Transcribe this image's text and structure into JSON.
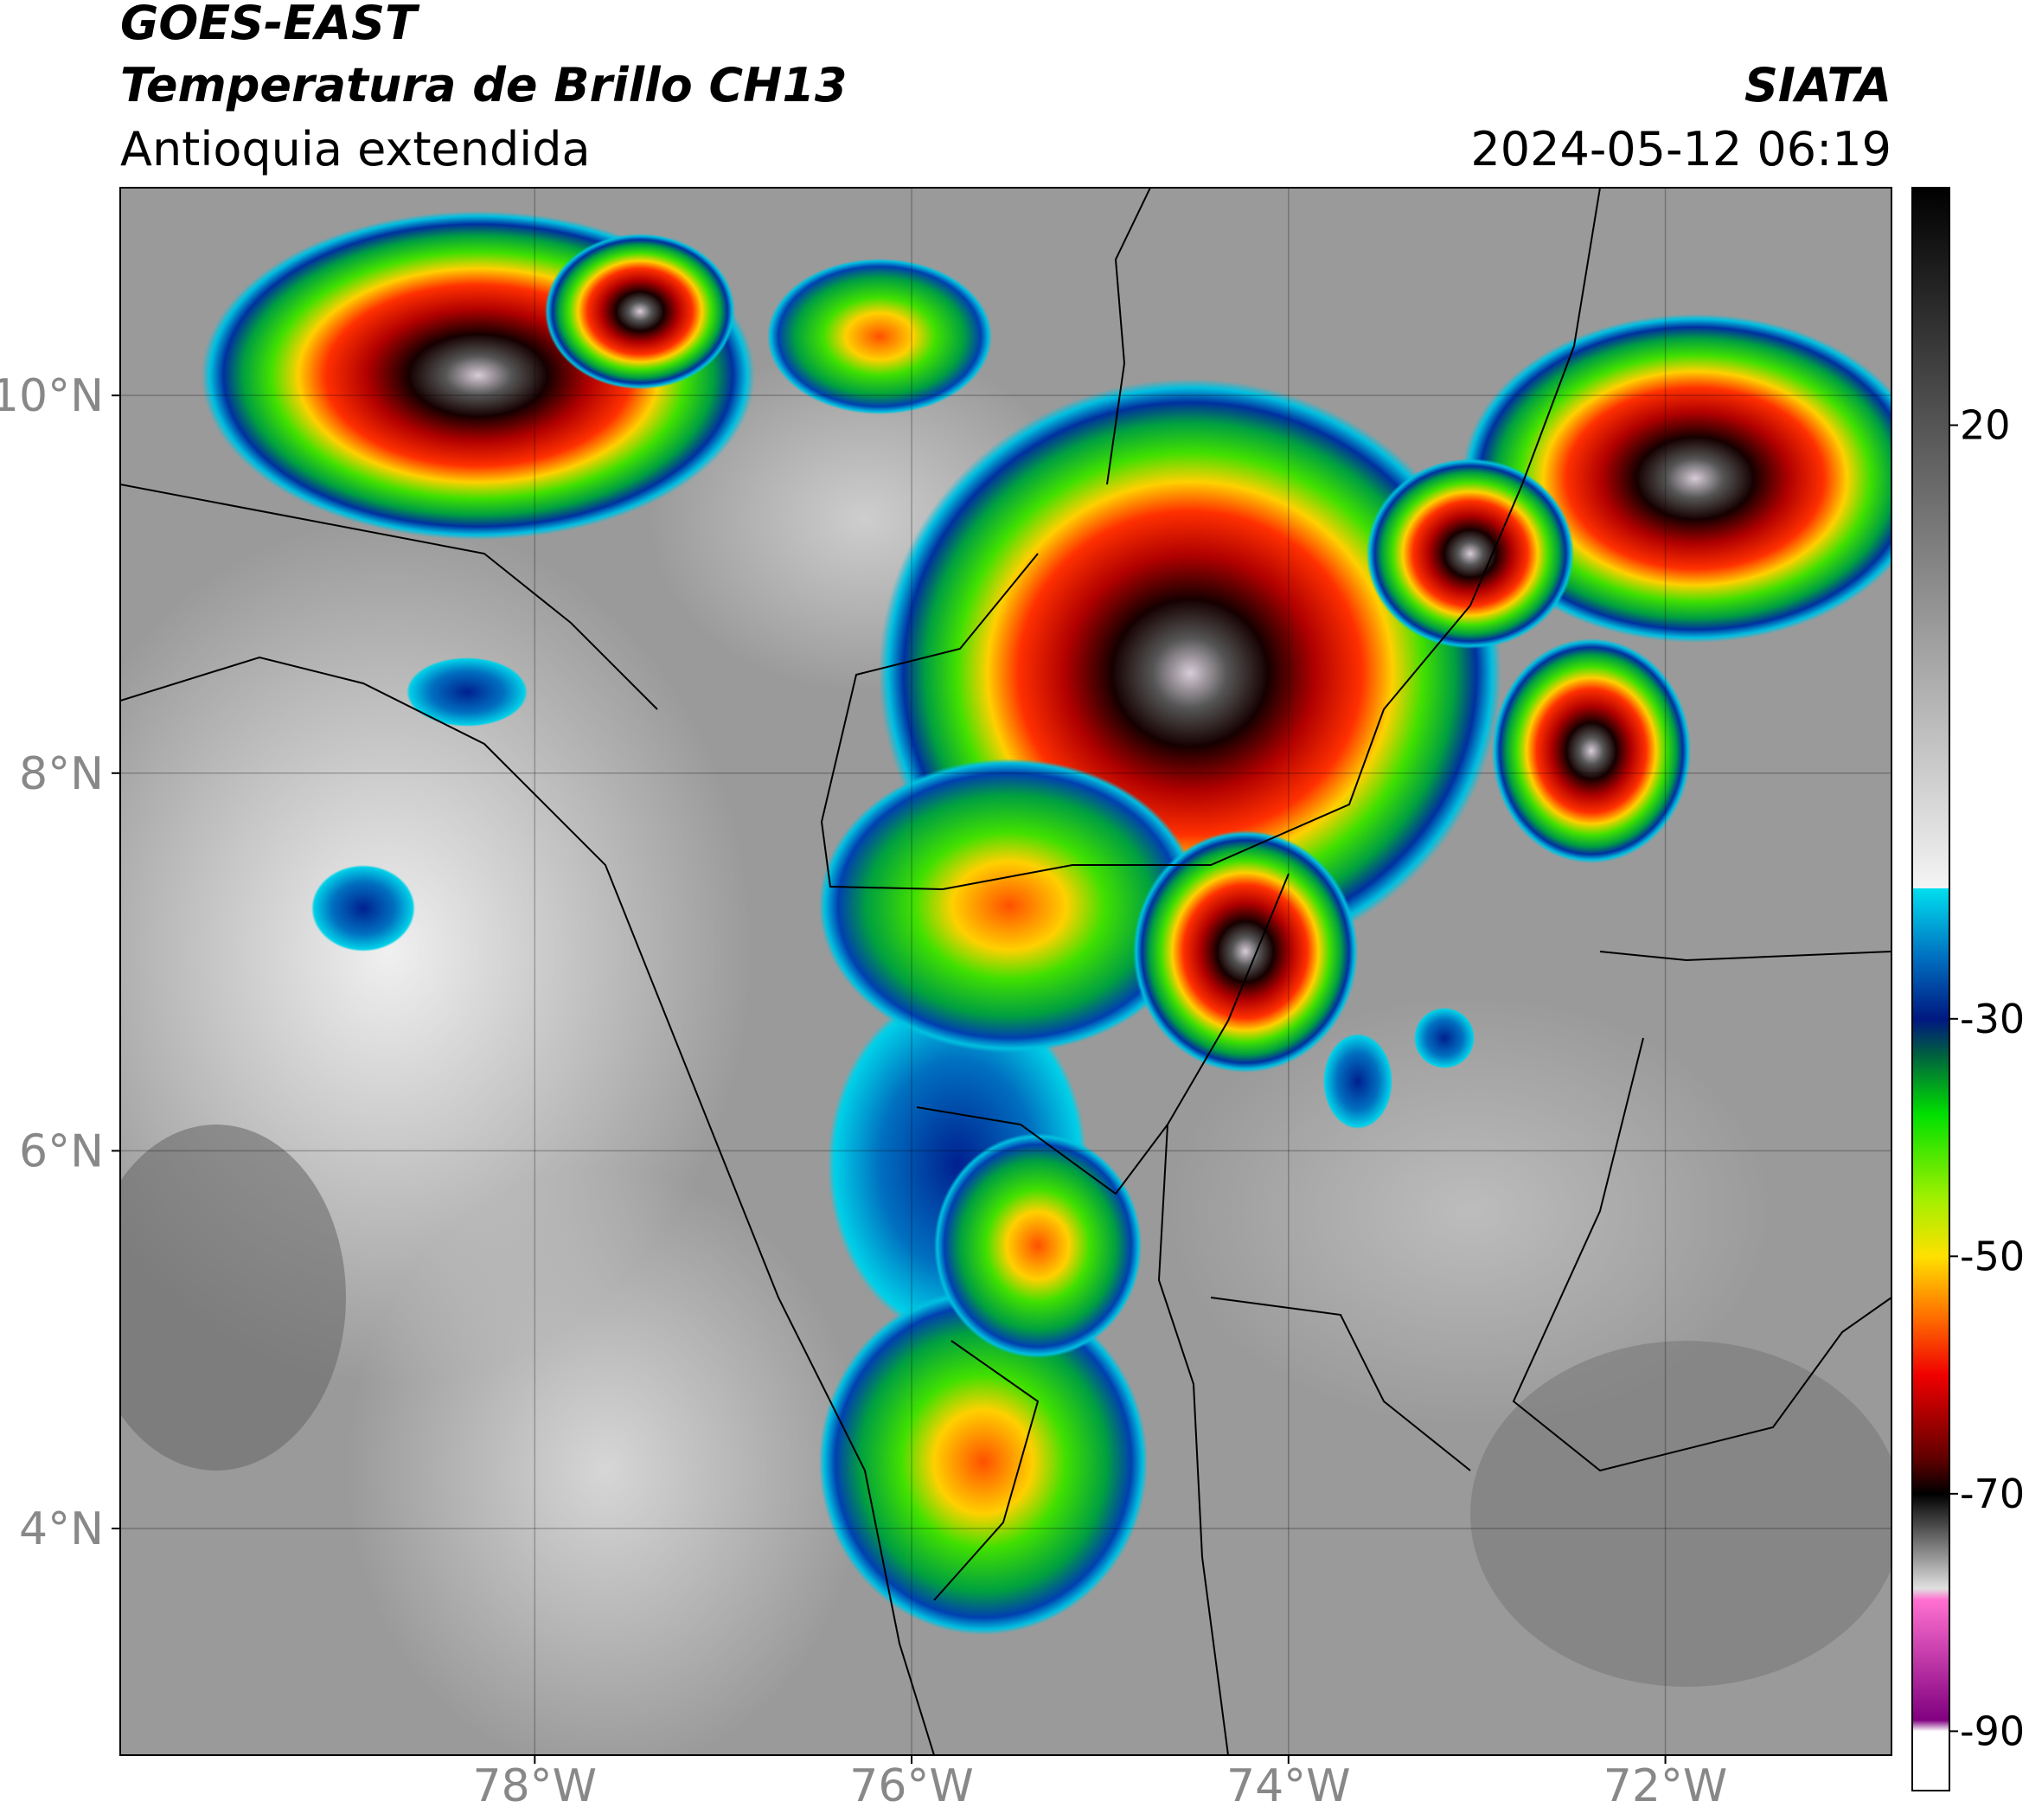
{
  "header": {
    "satellite": "GOES-EAST",
    "product": "Temperatura de Brillo CH13",
    "region": "Antioquia extendida",
    "agency": "SIATA",
    "datetime": "2024-05-12 06:19"
  },
  "map": {
    "lonlim": [
      -80.2,
      -70.8
    ],
    "latlim": [
      2.8,
      11.1
    ],
    "grid": true,
    "xticks": [
      {
        "value": -78,
        "label": "78°W"
      },
      {
        "value": -76,
        "label": "76°W"
      },
      {
        "value": -74,
        "label": "74°W"
      },
      {
        "value": -72,
        "label": "72°W"
      }
    ],
    "yticks": [
      {
        "value": 4,
        "label": "4°N"
      },
      {
        "value": 6,
        "label": "6°N"
      },
      {
        "value": 8,
        "label": "8°N"
      },
      {
        "value": 10,
        "label": "10°N"
      }
    ]
  },
  "colorbar": {
    "lim": [
      -95,
      40
    ],
    "ticks": [
      20,
      -30,
      -50,
      -70,
      -90
    ]
  }
}
